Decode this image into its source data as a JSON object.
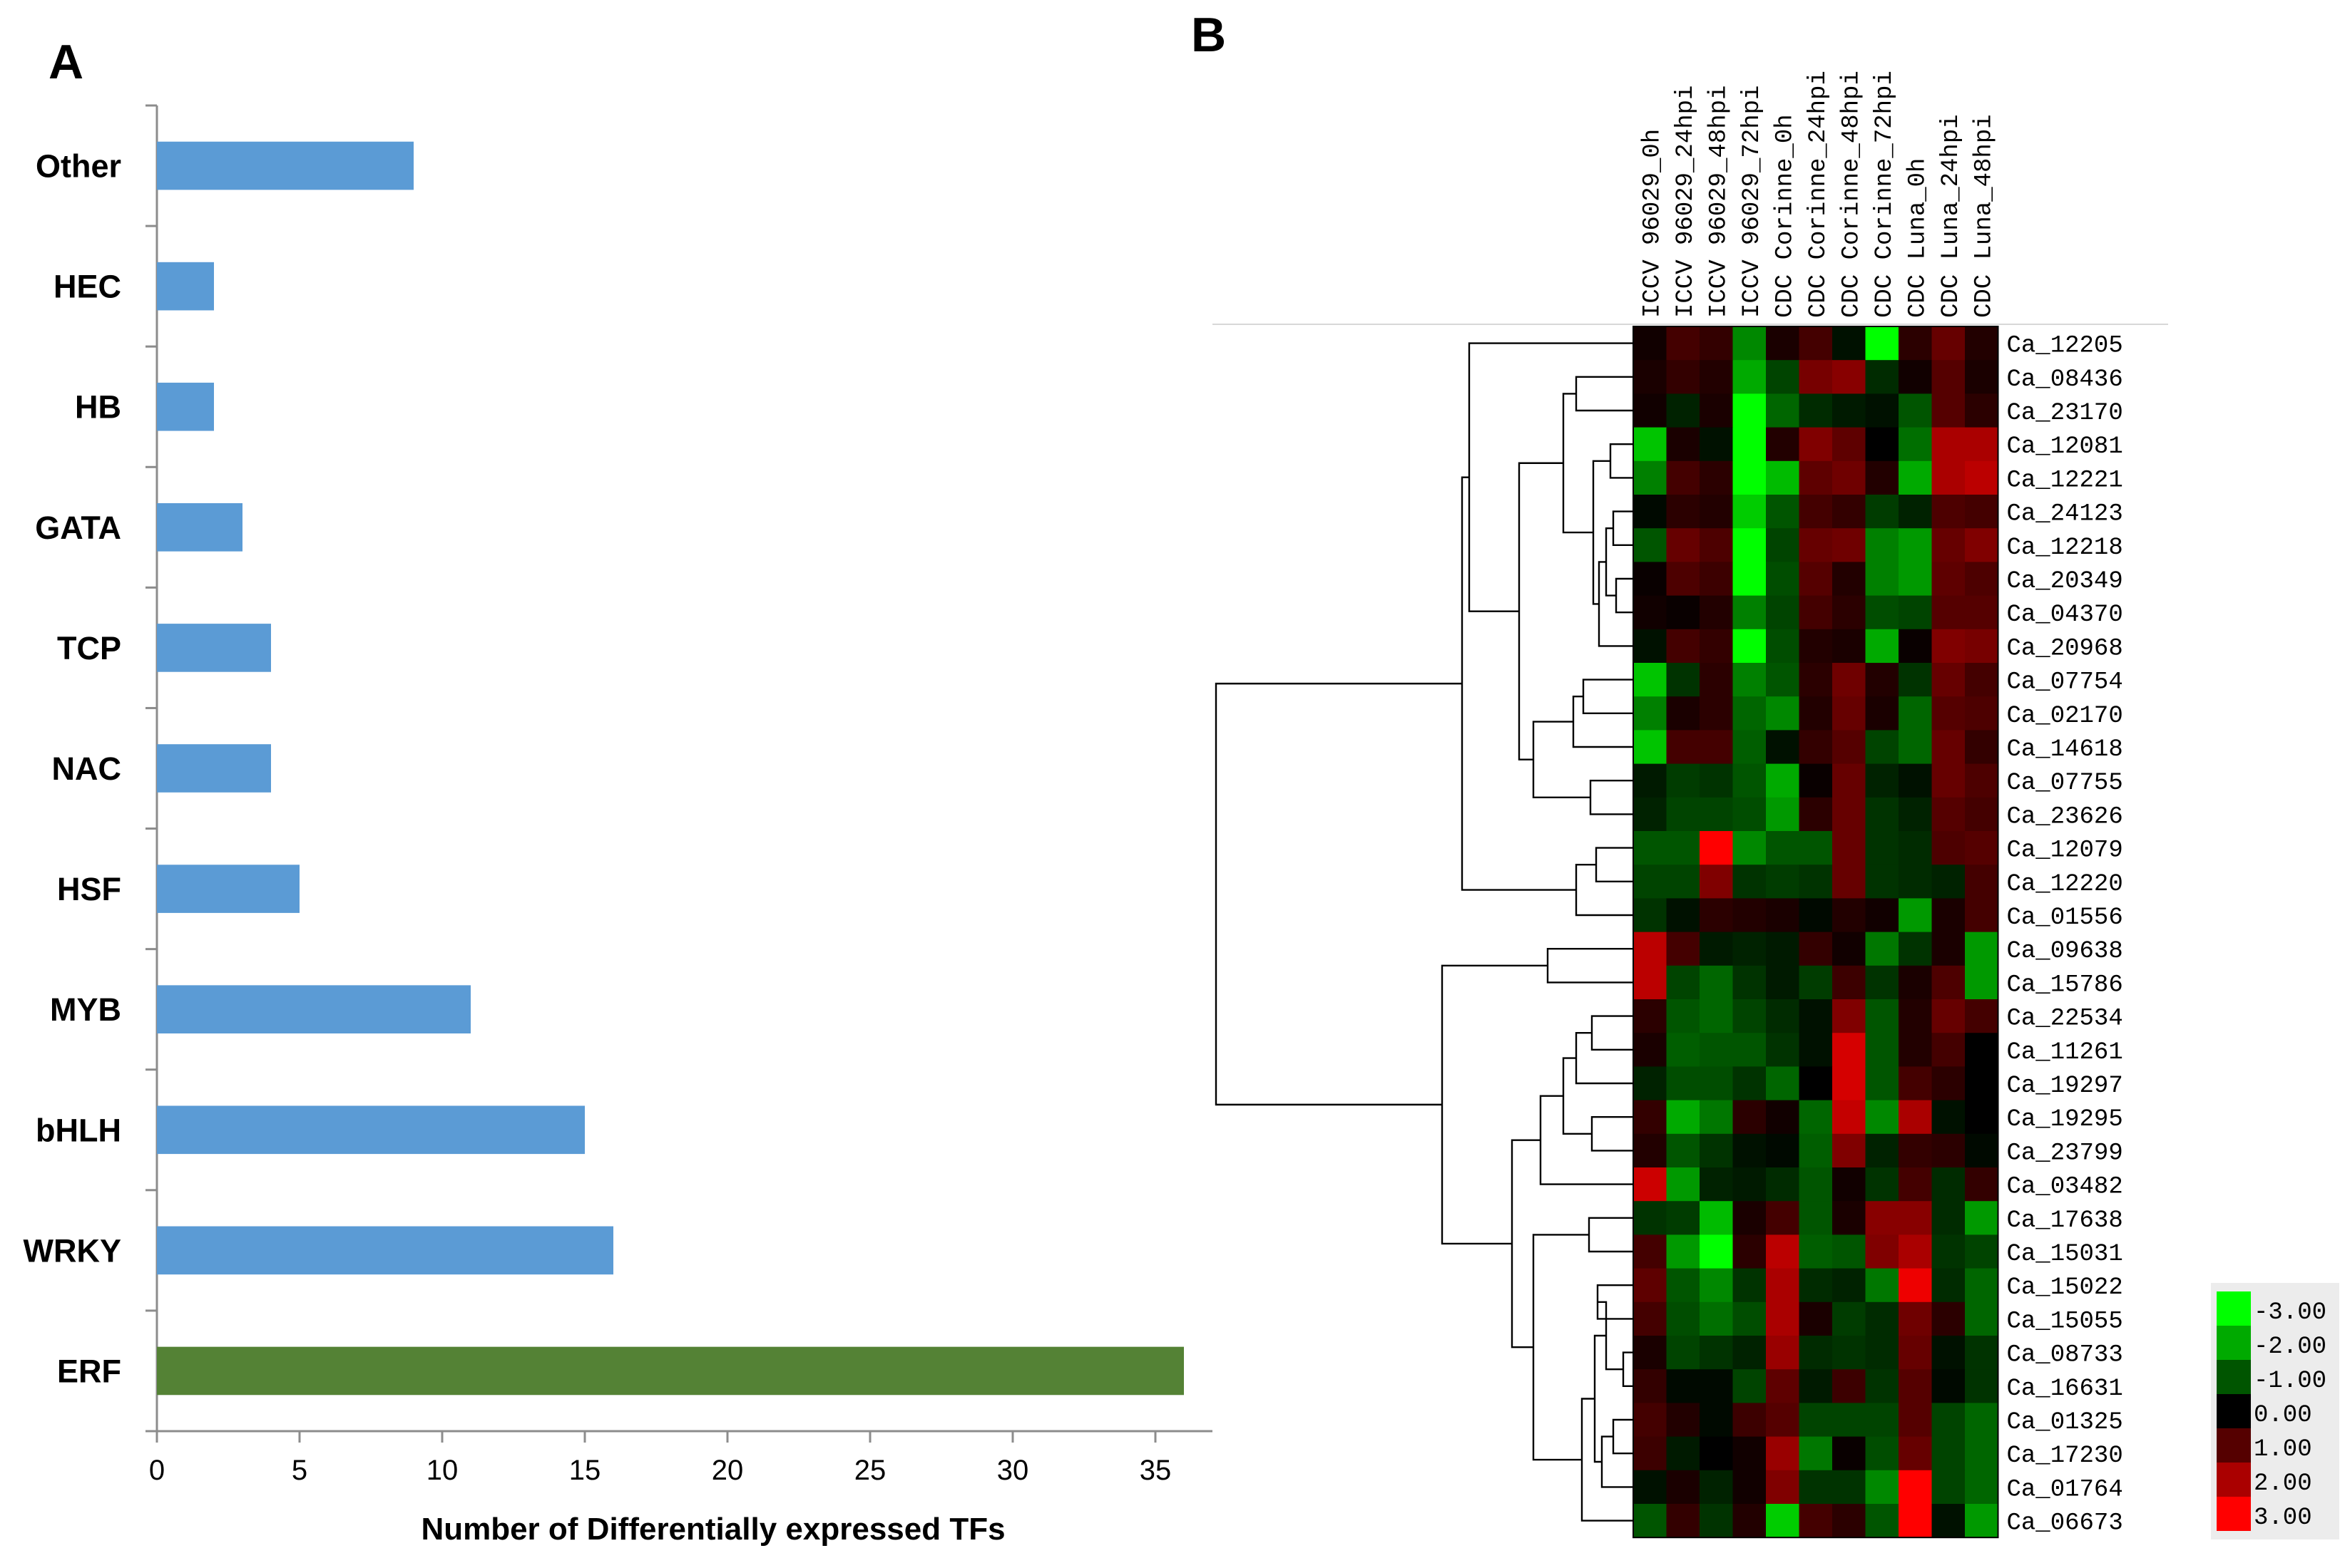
{
  "panels": {
    "a": "A",
    "b": "B"
  },
  "chart_data": [
    {
      "type": "bar",
      "orientation": "horizontal",
      "panel": "A",
      "categories": [
        "Other",
        "HEC",
        "HB",
        "GATA",
        "TCP",
        "NAC",
        "HSF",
        "MYB",
        "bHLH",
        "WRKY",
        "ERF"
      ],
      "values": [
        9,
        2,
        2,
        3,
        4,
        4,
        5,
        11,
        15,
        16,
        36
      ],
      "colors": [
        "#5b9bd5",
        "#5b9bd5",
        "#5b9bd5",
        "#5b9bd5",
        "#5b9bd5",
        "#5b9bd5",
        "#5b9bd5",
        "#5b9bd5",
        "#5b9bd5",
        "#5b9bd5",
        "#548235"
      ],
      "xlabel": "Number of Differentially expressed TFs",
      "xlim": [
        0,
        37
      ],
      "xticks": [
        0,
        5,
        10,
        15,
        20,
        25,
        30,
        35
      ],
      "grid": false
    },
    {
      "type": "heatmap",
      "panel": "B",
      "columns": [
        "ICCV 96029_0h",
        "ICCV 96029_24hpi",
        "ICCV 96029_48hpi",
        "ICCV 96029_72hpi",
        "CDC Corinne_0h",
        "CDC Corinne_24hpi",
        "CDC Corinne_48hpi",
        "CDC Corinne_72hpi",
        "CDC Luna_0h",
        "CDC Luna_24hpi",
        "CDC Luna_48hpi"
      ],
      "rows": [
        "Ca_12205",
        "Ca_08436",
        "Ca_23170",
        "Ca_12081",
        "Ca_12221",
        "Ca_24123",
        "Ca_12218",
        "Ca_20349",
        "Ca_04370",
        "Ca_20968",
        "Ca_07754",
        "Ca_02170",
        "Ca_14618",
        "Ca_07755",
        "Ca_23626",
        "Ca_12079",
        "Ca_12220",
        "Ca_01556",
        "Ca_09638",
        "Ca_15786",
        "Ca_22534",
        "Ca_11261",
        "Ca_19297",
        "Ca_19295",
        "Ca_23799",
        "Ca_03482",
        "Ca_17638",
        "Ca_15031",
        "Ca_15022",
        "Ca_15055",
        "Ca_08733",
        "Ca_16631",
        "Ca_01325",
        "Ca_17230",
        "Ca_01764",
        "Ca_06673"
      ],
      "values": [
        [
          0.2,
          0.8,
          0.6,
          -1.6,
          0.3,
          0.8,
          -0.2,
          -3.0,
          0.5,
          1.2,
          0.4
        ],
        [
          0.3,
          0.6,
          0.4,
          -2.0,
          -0.8,
          1.4,
          1.6,
          -0.5,
          0.2,
          1.0,
          0.3
        ],
        [
          0.2,
          -0.4,
          0.3,
          -3.0,
          -1.2,
          -0.5,
          -0.3,
          -0.2,
          -1.0,
          1.0,
          0.5
        ],
        [
          -2.3,
          0.3,
          -0.2,
          -3.0,
          0.4,
          1.5,
          1.1,
          0.0,
          -1.3,
          2.0,
          2.0
        ],
        [
          -1.5,
          0.8,
          0.5,
          -3.0,
          -2.2,
          1.1,
          1.3,
          0.4,
          -2.0,
          2.0,
          2.2
        ],
        [
          -0.1,
          0.5,
          0.4,
          -2.4,
          -1.0,
          0.8,
          0.6,
          -0.7,
          -0.4,
          0.9,
          0.8
        ],
        [
          -1.0,
          1.2,
          0.9,
          -3.0,
          -0.8,
          1.2,
          1.3,
          -1.5,
          -1.8,
          1.2,
          1.5
        ],
        [
          0.1,
          0.9,
          0.7,
          -3.0,
          -0.9,
          1.0,
          0.4,
          -1.5,
          -1.8,
          1.1,
          0.9
        ],
        [
          0.2,
          0.1,
          0.4,
          -1.5,
          -0.8,
          0.8,
          0.5,
          -0.9,
          -0.8,
          1.0,
          1.0
        ],
        [
          -0.2,
          0.8,
          0.6,
          -3.0,
          -0.9,
          0.4,
          0.3,
          -2.0,
          0.1,
          1.5,
          1.4
        ],
        [
          -2.3,
          -0.6,
          0.5,
          -1.5,
          -1.0,
          0.5,
          1.3,
          0.4,
          -0.6,
          1.2,
          0.8
        ],
        [
          -1.5,
          0.3,
          0.5,
          -1.2,
          -1.6,
          0.4,
          1.2,
          0.3,
          -1.2,
          1.0,
          0.9
        ],
        [
          -2.3,
          0.8,
          0.8,
          -1.1,
          -0.2,
          0.6,
          1.0,
          -0.8,
          -1.2,
          1.2,
          0.6
        ],
        [
          -0.3,
          -0.7,
          -0.6,
          -1.0,
          -2.0,
          0.1,
          1.2,
          -0.4,
          -0.2,
          1.2,
          0.9
        ],
        [
          -0.4,
          -0.8,
          -0.8,
          -0.9,
          -1.8,
          0.5,
          1.2,
          -0.6,
          -0.4,
          1.0,
          0.8
        ],
        [
          -1.0,
          -1.0,
          3.0,
          -1.6,
          -1.0,
          -1.0,
          1.2,
          -0.6,
          -0.5,
          0.9,
          1.0
        ],
        [
          -0.8,
          -0.8,
          1.5,
          -0.6,
          -0.7,
          -0.6,
          1.2,
          -0.6,
          -0.5,
          -0.4,
          0.8
        ],
        [
          -0.6,
          -0.2,
          0.5,
          0.4,
          0.3,
          -0.1,
          0.4,
          0.2,
          -1.8,
          0.3,
          0.8
        ],
        [
          2.2,
          0.8,
          -0.3,
          -0.4,
          -0.3,
          0.6,
          0.2,
          -1.4,
          -0.6,
          0.3,
          -1.8
        ],
        [
          2.2,
          -0.8,
          -1.2,
          -0.6,
          -0.3,
          -0.7,
          0.7,
          -0.6,
          0.3,
          0.9,
          -1.8
        ],
        [
          0.5,
          -1.0,
          -1.2,
          -0.8,
          -0.5,
          -0.2,
          1.5,
          -1.0,
          0.4,
          1.2,
          0.8
        ],
        [
          0.3,
          -1.1,
          -1.0,
          -1.0,
          -0.6,
          -0.2,
          2.5,
          -1.0,
          0.4,
          0.8,
          0.0
        ],
        [
          -0.4,
          -0.9,
          -0.9,
          -0.6,
          -1.2,
          0.0,
          2.5,
          -1.0,
          0.8,
          0.5,
          0.0
        ],
        [
          0.6,
          -2.0,
          -1.4,
          0.5,
          0.2,
          -1.2,
          2.3,
          -1.6,
          2.0,
          -0.2,
          0.0
        ],
        [
          0.4,
          -1.0,
          -0.6,
          -0.2,
          -0.1,
          -1.1,
          1.5,
          -0.4,
          0.6,
          0.5,
          -0.1
        ],
        [
          2.4,
          -1.8,
          -0.4,
          -0.3,
          -0.5,
          -1.0,
          0.2,
          -0.6,
          0.8,
          -0.5,
          0.6
        ],
        [
          -0.6,
          -0.7,
          -2.2,
          0.3,
          0.8,
          -1.0,
          0.3,
          1.6,
          1.6,
          -0.5,
          -1.8
        ],
        [
          0.8,
          -1.8,
          -3.0,
          0.5,
          2.2,
          -1.1,
          -1.0,
          1.5,
          2.0,
          -0.6,
          -0.8
        ],
        [
          1.1,
          -1.0,
          -1.6,
          -0.6,
          2.0,
          -0.5,
          -0.4,
          -1.4,
          2.8,
          -0.5,
          -1.2
        ],
        [
          0.8,
          -0.9,
          -1.3,
          -0.9,
          2.0,
          0.3,
          -0.7,
          -0.5,
          1.3,
          0.5,
          -1.2
        ],
        [
          0.3,
          -0.8,
          -0.6,
          -0.4,
          1.8,
          -0.5,
          -0.6,
          -0.5,
          1.2,
          -0.2,
          -0.6
        ],
        [
          0.6,
          -0.1,
          -0.1,
          -0.8,
          1.1,
          -0.3,
          0.7,
          -0.6,
          1.0,
          -0.1,
          -0.6
        ],
        [
          0.8,
          0.4,
          -0.1,
          0.7,
          1.0,
          -0.8,
          -0.8,
          -0.8,
          1.0,
          -0.8,
          -1.2
        ],
        [
          0.7,
          -0.3,
          0.0,
          0.2,
          1.8,
          -1.4,
          0.1,
          -0.9,
          1.2,
          -0.8,
          -1.2
        ],
        [
          -0.2,
          0.3,
          -0.4,
          0.2,
          1.5,
          -0.6,
          -0.6,
          -1.6,
          3.0,
          -0.8,
          -1.2
        ],
        [
          -1.0,
          0.6,
          -0.6,
          0.4,
          -2.4,
          0.8,
          0.5,
          -1.0,
          3.0,
          -0.2,
          -1.8
        ]
      ],
      "scale_range": [
        -3.0,
        3.0
      ],
      "colormap": {
        "low": "#00ff00",
        "mid": "#000000",
        "high": "#ff0000"
      },
      "legend_labels": [
        "-3.00",
        "-2.00",
        "-1.00",
        "0.00",
        "1.00",
        "2.00",
        "3.00"
      ],
      "legend_values": [
        -3,
        -2,
        -1,
        0,
        1,
        2,
        3
      ],
      "dendrogram": "row clustering tree drawn to the left of the heatmap",
      "legend_placement": "bottom-right"
    }
  ]
}
